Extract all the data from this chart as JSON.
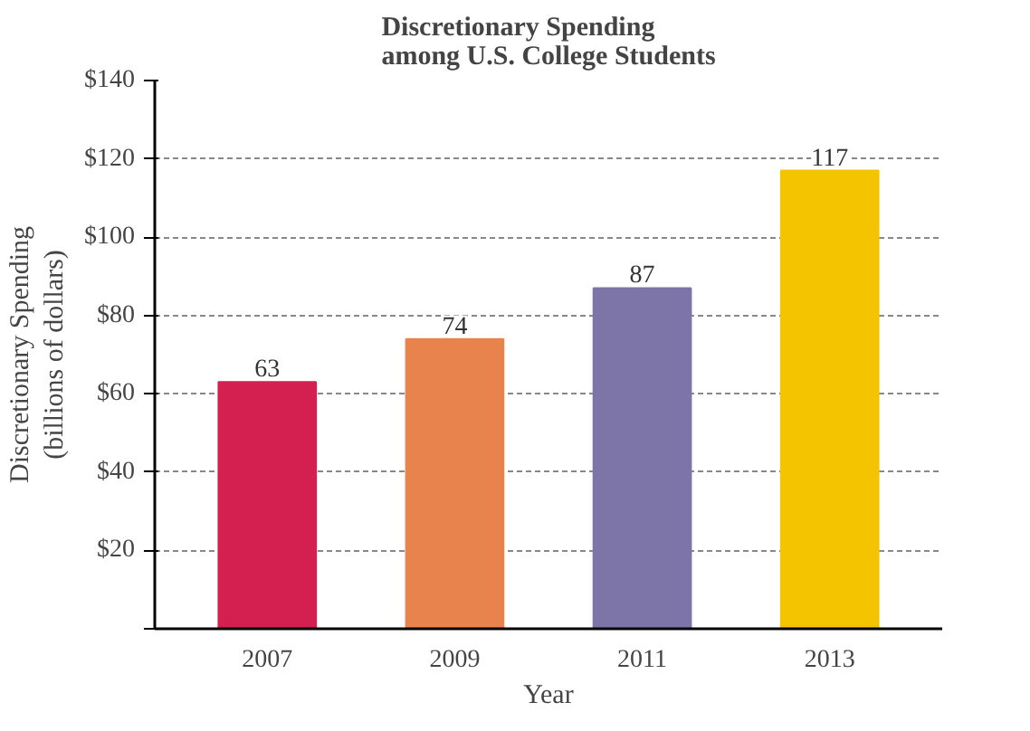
{
  "chart_data": {
    "type": "bar",
    "title": "Discretionary Spending\namong U.S. College Students",
    "xlabel": "Year",
    "ylabel": "Discretionary Spending\n(billions of dollars)",
    "categories": [
      "2007",
      "2009",
      "2011",
      "2013"
    ],
    "values": [
      63,
      74,
      87,
      117
    ],
    "colors": [
      "#d42050",
      "#e8834e",
      "#7d74a8",
      "#f5c400"
    ],
    "ylim": [
      0,
      140
    ],
    "yticks": [
      {
        "value": 0,
        "label": null
      },
      {
        "value": 20,
        "label": "$20"
      },
      {
        "value": 40,
        "label": "$40"
      },
      {
        "value": 60,
        "label": "$60"
      },
      {
        "value": 80,
        "label": "$80"
      },
      {
        "value": 100,
        "label": "$100"
      },
      {
        "value": 120,
        "label": "$120"
      },
      {
        "value": 140,
        "label": "$140"
      }
    ],
    "grid": "y",
    "data_labels": true
  }
}
